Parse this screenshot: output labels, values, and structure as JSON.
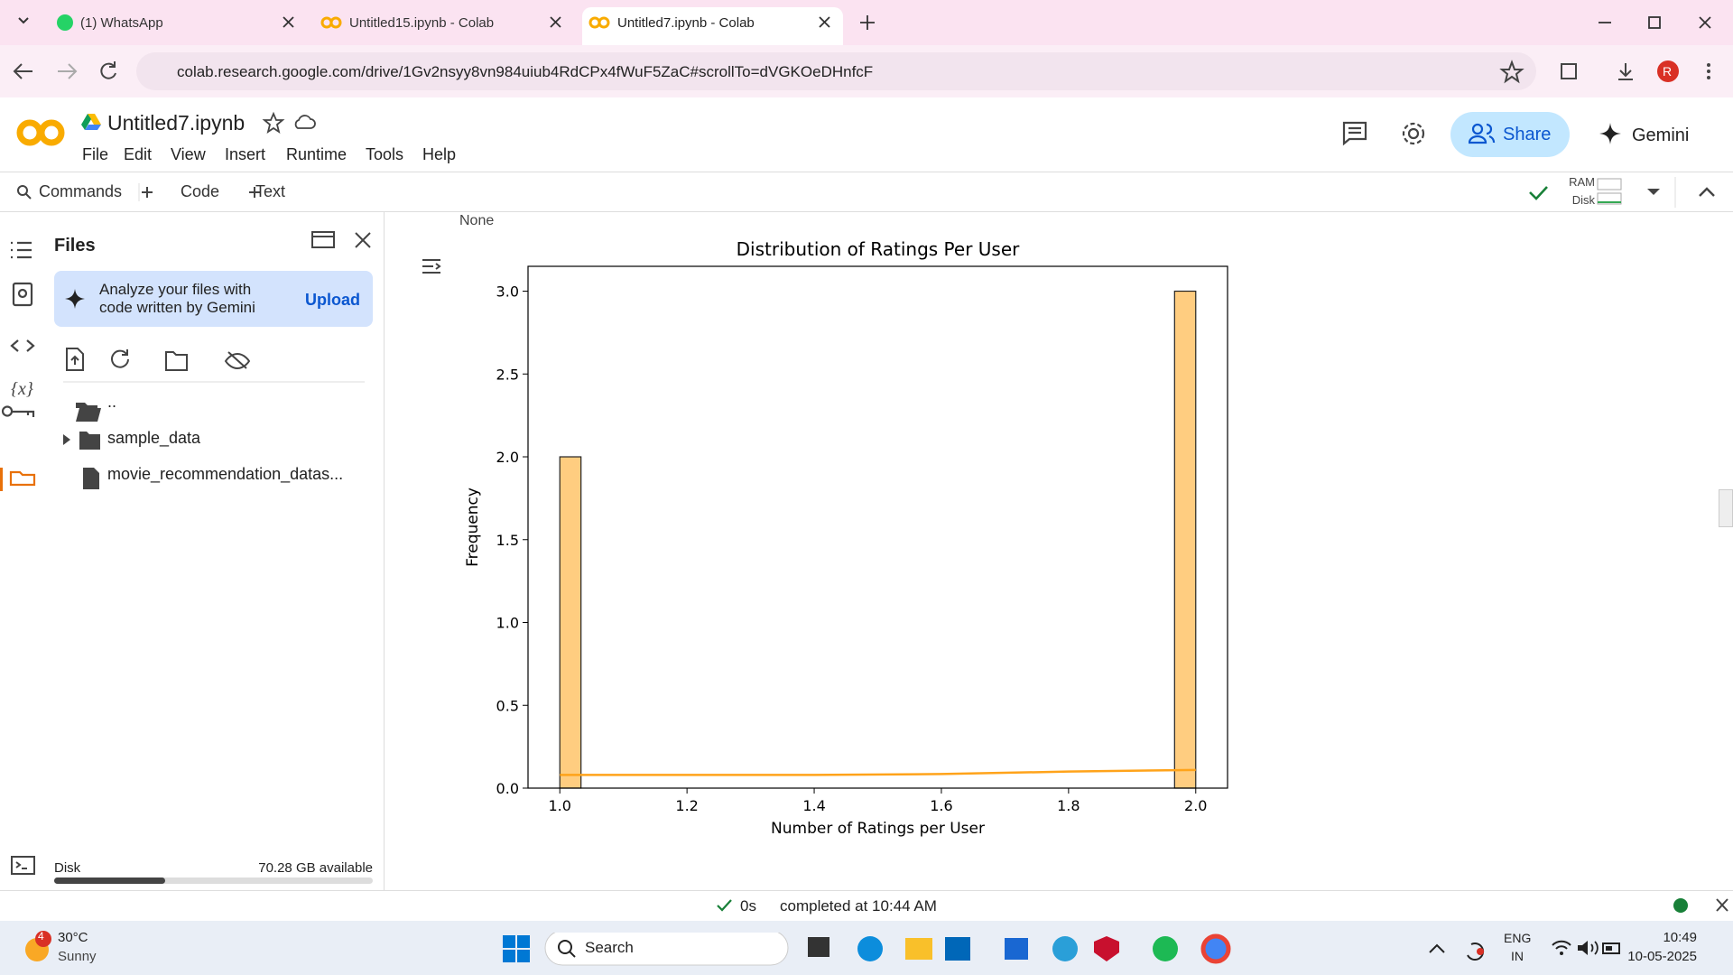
{
  "tabs": [
    "(1) WhatsApp",
    "Untitled15.ipynb - Colab",
    "Untitled7.ipynb - Colab"
  ],
  "url": "colab.research.google.com/drive/1Gv2nsyy8vn984uiub4RdCPx4fWuF5ZaC#scrollTo=dVGKOeDHnfcF",
  "profile": "R",
  "notebook": {
    "name": "Untitled7.ipynb",
    "menu": [
      "File",
      "Edit",
      "View",
      "Insert",
      "Runtime",
      "Tools",
      "Help"
    ],
    "share": "Share",
    "gemini": "Gemini"
  },
  "toolbar": {
    "commands": "Commands",
    "code": "Code",
    "text": "Text",
    "ram": "RAM",
    "disk": "Disk"
  },
  "files": {
    "title": "Files",
    "promo": "Analyze your files with code written by Gemini",
    "upload": "Upload",
    "items": [
      "..",
      "sample_data",
      "movie_recommendation_datas..."
    ],
    "disk_label": "Disk",
    "disk_free": "70.28 GB available"
  },
  "output_text": "None",
  "status": {
    "time": "0s",
    "message": "completed at 10:44 AM"
  },
  "taskbar": {
    "weather_badge": "4",
    "temperature": "30°C",
    "condition": "Sunny",
    "search": "Search",
    "lang": [
      "ENG",
      "IN"
    ],
    "clock": "10:49",
    "date": "10-05-2025"
  },
  "chart_data": {
    "type": "histogram",
    "title": "Distribution of Ratings Per User",
    "xlabel": "Number of Ratings per User",
    "ylabel": "Frequency",
    "bins": [
      1.0,
      1.0333,
      1.0667,
      1.1,
      1.1333,
      1.1667,
      1.2,
      1.2333,
      1.2667,
      1.3,
      1.3333,
      1.3667,
      1.4,
      1.4333,
      1.4667,
      1.5,
      1.5333,
      1.5667,
      1.6,
      1.6333,
      1.6667,
      1.7,
      1.7333,
      1.7667,
      1.8,
      1.8333,
      1.8667,
      1.9,
      1.9333,
      1.9667,
      2.0
    ],
    "values": [
      2,
      0,
      0,
      0,
      0,
      0,
      0,
      0,
      0,
      0,
      0,
      0,
      0,
      0,
      0,
      0,
      0,
      0,
      0,
      0,
      0,
      0,
      0,
      0,
      0,
      0,
      0,
      0,
      0,
      3
    ],
    "color": "#ffcd80",
    "edgecolor": "#222222",
    "kde": {
      "x": [
        1.0,
        1.2,
        1.4,
        1.6,
        1.8,
        2.0
      ],
      "values": [
        0.08,
        0.08,
        0.08,
        0.085,
        0.1,
        0.11
      ],
      "color": "#ffa31a"
    },
    "xlim": [
      0.95,
      2.05
    ],
    "ylim": [
      0,
      3.15
    ],
    "xticks": [
      {
        "value": 1,
        "label": "1.0"
      },
      1.2,
      1.4,
      1.6,
      1.8,
      {
        "value": 2,
        "label": "2.0"
      }
    ],
    "yticks": [
      {
        "value": 0,
        "label": "0.0"
      },
      0.5,
      {
        "value": 1,
        "label": "1.0"
      },
      1.5,
      {
        "value": 2,
        "label": "2.0"
      },
      2.5,
      {
        "value": 3,
        "label": "3.0"
      }
    ]
  }
}
